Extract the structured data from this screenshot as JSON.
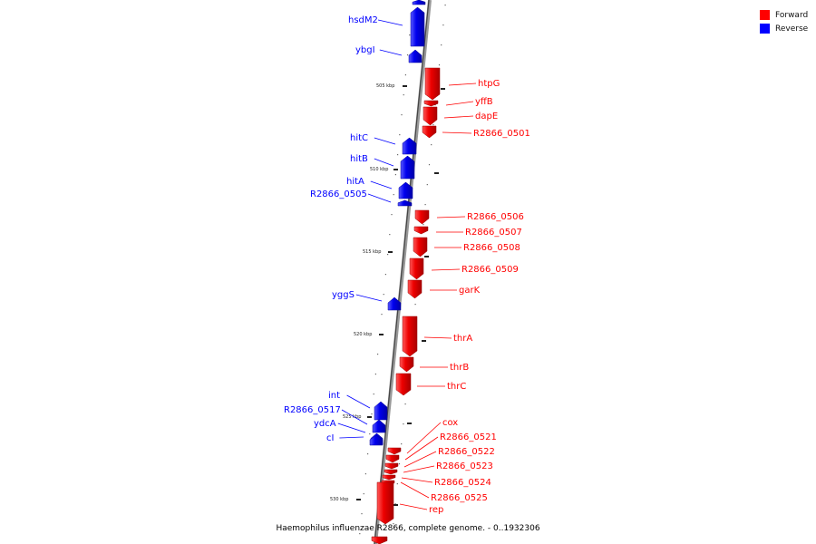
{
  "caption": "Haemophilus influenzae R2866, complete genome. - 0..1932306",
  "legend": {
    "forward_label": "Forward",
    "reverse_label": "Reverse",
    "forward_color": "#ff0000",
    "reverse_color": "#0000ff"
  },
  "ticks": [
    {
      "label": "505 kbp"
    },
    {
      "label": "510 kbp"
    },
    {
      "label": "515 kbp"
    },
    {
      "label": "520 kbp"
    },
    {
      "label": "525 kbp"
    },
    {
      "label": "530 kbp"
    }
  ],
  "genes": [
    {
      "name": "",
      "strand": "reverse"
    },
    {
      "name": "hsdM2",
      "strand": "reverse"
    },
    {
      "name": "ybgI",
      "strand": "reverse"
    },
    {
      "name": "htpG",
      "strand": "forward"
    },
    {
      "name": "yffB",
      "strand": "forward"
    },
    {
      "name": "dapE",
      "strand": "forward"
    },
    {
      "name": "R2866_0501",
      "strand": "forward"
    },
    {
      "name": "hitC",
      "strand": "reverse"
    },
    {
      "name": "hitB",
      "strand": "reverse"
    },
    {
      "name": "hitA",
      "strand": "reverse"
    },
    {
      "name": "R2866_0505",
      "strand": "reverse"
    },
    {
      "name": "R2866_0506",
      "strand": "forward"
    },
    {
      "name": "R2866_0507",
      "strand": "forward"
    },
    {
      "name": "R2866_0508",
      "strand": "forward"
    },
    {
      "name": "R2866_0509",
      "strand": "forward"
    },
    {
      "name": "garK",
      "strand": "forward"
    },
    {
      "name": "yggS",
      "strand": "reverse"
    },
    {
      "name": "thrA",
      "strand": "forward"
    },
    {
      "name": "thrB",
      "strand": "forward"
    },
    {
      "name": "thrC",
      "strand": "forward"
    },
    {
      "name": "int",
      "strand": "reverse"
    },
    {
      "name": "R2866_0517",
      "strand": "reverse"
    },
    {
      "name": "ydcA",
      "strand": "reverse"
    },
    {
      "name": "cI",
      "strand": "reverse"
    },
    {
      "name": "cox",
      "strand": "forward"
    },
    {
      "name": "R2866_0521",
      "strand": "forward"
    },
    {
      "name": "R2866_0522",
      "strand": "forward"
    },
    {
      "name": "R2866_0523",
      "strand": "forward"
    },
    {
      "name": "R2866_0524",
      "strand": "forward"
    },
    {
      "name": "R2866_0525",
      "strand": "forward"
    },
    {
      "name": "rep",
      "strand": "forward"
    },
    {
      "name": "",
      "strand": "forward"
    }
  ]
}
